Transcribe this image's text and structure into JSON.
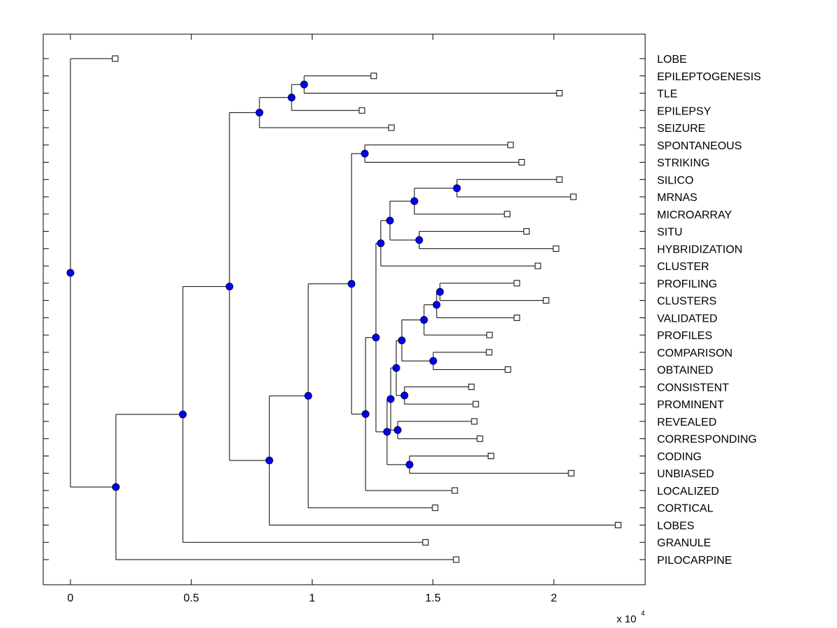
{
  "chart_data": {
    "type": "dendrogram",
    "title": "",
    "xlabel": "",
    "ylabel": "",
    "x_exponent_label": "x 10",
    "x_exponent_power": "4",
    "xlim": [
      -0.1125,
      2.378
    ],
    "xticks": [
      0,
      0.5,
      1,
      1.5,
      2
    ],
    "xtick_labels": [
      "0",
      "0.5",
      "1",
      "1.5",
      "2"
    ],
    "grid": false,
    "orientation": "left-to-right, leaves on right axis",
    "colors": {
      "node_fill": "#0000ff",
      "node_edge": "#000033",
      "leaf_fill": "#ffffff",
      "leaf_edge": "#000000",
      "line": "#000000"
    },
    "leaves": [
      {
        "label": "LOBE",
        "x": 0.185
      },
      {
        "label": "EPILEPTOGENESIS",
        "x": 1.255
      },
      {
        "label": "TLE",
        "x": 2.023
      },
      {
        "label": "EPILEPSY",
        "x": 1.206
      },
      {
        "label": "SEIZURE",
        "x": 1.328
      },
      {
        "label": "SPONTANEOUS",
        "x": 1.821
      },
      {
        "label": "STRIKING",
        "x": 1.867
      },
      {
        "label": "SILICO",
        "x": 2.023
      },
      {
        "label": "MRNAS",
        "x": 2.081
      },
      {
        "label": "MICROARRAY",
        "x": 1.807
      },
      {
        "label": "SITU",
        "x": 1.887
      },
      {
        "label": "HYBRIDIZATION",
        "x": 2.009
      },
      {
        "label": "CLUSTER",
        "x": 1.934
      },
      {
        "label": "PROFILING",
        "x": 1.847
      },
      {
        "label": "CLUSTERS",
        "x": 1.968
      },
      {
        "label": "VALIDATED",
        "x": 1.847
      },
      {
        "label": "PROFILES",
        "x": 1.734
      },
      {
        "label": "COMPARISON",
        "x": 1.732
      },
      {
        "label": "OBTAINED",
        "x": 1.81
      },
      {
        "label": "CONSISTENT",
        "x": 1.659
      },
      {
        "label": "PROMINENT",
        "x": 1.677
      },
      {
        "label": "REVEALED",
        "x": 1.671
      },
      {
        "label": "CORRESPONDING",
        "x": 1.694
      },
      {
        "label": "CODING",
        "x": 1.74
      },
      {
        "label": "UNBIASED",
        "x": 2.072
      },
      {
        "label": "LOCALIZED",
        "x": 1.59
      },
      {
        "label": "CORTICAL",
        "x": 1.509
      },
      {
        "label": "LOBES",
        "x": 2.266
      },
      {
        "label": "GRANULE",
        "x": 1.469
      },
      {
        "label": "PILOCARPINE",
        "x": 1.596
      }
    ],
    "nodes": [
      {
        "id": "n_epi_tle",
        "x": 0.967,
        "children": [
          "L1",
          "L2"
        ]
      },
      {
        "id": "n_epi3",
        "x": 0.915,
        "children": [
          "n_epi_tle",
          "L3"
        ]
      },
      {
        "id": "n_epi4",
        "x": 0.782,
        "children": [
          "n_epi3",
          "L4"
        ]
      },
      {
        "id": "n_spont",
        "x": 1.218,
        "children": [
          "L5",
          "L6"
        ]
      },
      {
        "id": "n_silico",
        "x": 1.599,
        "children": [
          "L7",
          "L8"
        ]
      },
      {
        "id": "n_micro",
        "x": 1.423,
        "children": [
          "n_silico",
          "L9"
        ]
      },
      {
        "id": "n_situ",
        "x": 1.443,
        "children": [
          "L10",
          "L11"
        ]
      },
      {
        "id": "n_mrna_situ",
        "x": 1.322,
        "children": [
          "n_micro",
          "n_situ"
        ]
      },
      {
        "id": "n_cluster",
        "x": 1.284,
        "children": [
          "n_mrna_situ",
          "L12"
        ]
      },
      {
        "id": "n_profiling",
        "x": 1.529,
        "children": [
          "L13",
          "L14"
        ]
      },
      {
        "id": "n_validated",
        "x": 1.515,
        "children": [
          "n_profiling",
          "L15"
        ]
      },
      {
        "id": "n_profiles",
        "x": 1.463,
        "children": [
          "n_validated",
          "L16"
        ]
      },
      {
        "id": "n_comparison",
        "x": 1.501,
        "children": [
          "L17",
          "L18"
        ]
      },
      {
        "id": "n_prof_comp",
        "x": 1.371,
        "children": [
          "n_profiles",
          "n_comparison"
        ]
      },
      {
        "id": "n_consistent",
        "x": 1.382,
        "children": [
          "L19",
          "L20"
        ]
      },
      {
        "id": "n_pc_cons",
        "x": 1.348,
        "children": [
          "n_prof_comp",
          "n_consistent"
        ]
      },
      {
        "id": "n_revealed",
        "x": 1.354,
        "children": [
          "L21",
          "L22"
        ]
      },
      {
        "id": "n_pcc_rev",
        "x": 1.325,
        "children": [
          "n_pc_cons",
          "n_revealed"
        ]
      },
      {
        "id": "n_coding",
        "x": 1.403,
        "children": [
          "L23",
          "L24"
        ]
      },
      {
        "id": "n_pccr_cod",
        "x": 1.31,
        "children": [
          "n_pcc_rev",
          "n_coding"
        ]
      },
      {
        "id": "n_big",
        "x": 1.264,
        "children": [
          "n_cluster",
          "n_pccr_cod"
        ]
      },
      {
        "id": "n_localized",
        "x": 1.221,
        "children": [
          "n_big",
          "L25"
        ]
      },
      {
        "id": "n_spont_loc",
        "x": 1.163,
        "children": [
          "n_spont",
          "n_localized"
        ]
      },
      {
        "id": "n_cortical",
        "x": 0.984,
        "children": [
          "n_spont_loc",
          "L26"
        ]
      },
      {
        "id": "n_lobes",
        "x": 0.823,
        "children": [
          "n_cortical",
          "L27"
        ]
      },
      {
        "id": "n_epi_main",
        "x": 0.658,
        "children": [
          "n_epi4",
          "n_lobes"
        ]
      },
      {
        "id": "n_granule",
        "x": 0.465,
        "children": [
          "n_epi_main",
          "L28"
        ]
      },
      {
        "id": "n_pilocarpine",
        "x": 0.188,
        "children": [
          "n_granule",
          "L29"
        ]
      },
      {
        "id": "n_root",
        "x": 0.0,
        "children": [
          "L0",
          "n_pilocarpine"
        ]
      }
    ]
  }
}
